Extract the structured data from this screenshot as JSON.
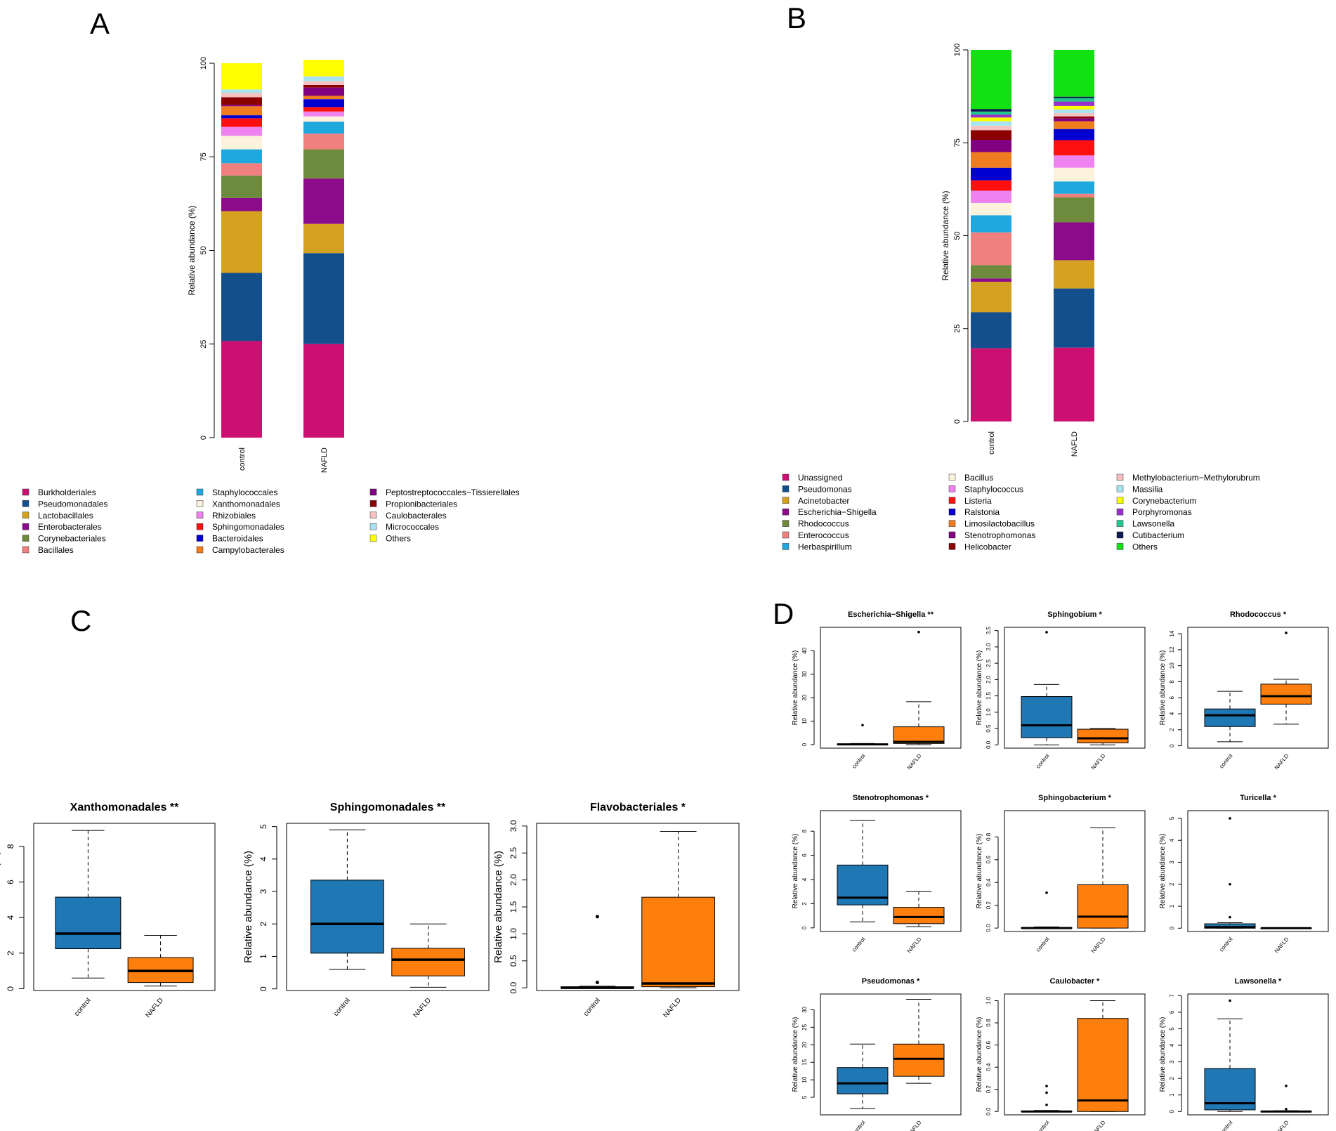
{
  "panel_labels": [
    "A",
    "B",
    "C",
    "D"
  ],
  "chart_data": [
    {
      "id": "A",
      "type": "bar",
      "stacked": true,
      "ylabel": "Relative abundance (%)",
      "ylim": [
        0,
        100
      ],
      "yticks": [
        "0",
        "25",
        "50",
        "75",
        "100"
      ],
      "categories": [
        "control",
        "NAFLD"
      ],
      "series": [
        {
          "name": "Burkholderiales",
          "color": "#cc1071",
          "values": [
            25.8,
            25.0
          ]
        },
        {
          "name": "Pseudomonadales",
          "color": "#134f8c",
          "values": [
            18.2,
            24.3
          ]
        },
        {
          "name": "Lactobacillales",
          "color": "#d4a120",
          "values": [
            16.5,
            7.8
          ]
        },
        {
          "name": "Enterobacterales",
          "color": "#8b0b8b",
          "values": [
            3.5,
            12.1
          ]
        },
        {
          "name": "Corynebacteriales",
          "color": "#6e8b3d",
          "values": [
            6.0,
            7.8
          ]
        },
        {
          "name": "Bacillales",
          "color": "#f08080",
          "values": [
            3.3,
            4.2
          ]
        },
        {
          "name": "Staphylococcales",
          "color": "#1fa7df",
          "values": [
            3.7,
            3.2
          ]
        },
        {
          "name": "Xanthomonadales",
          "color": "#fdf3dc",
          "values": [
            3.6,
            1.4
          ]
        },
        {
          "name": "Rhizobiales",
          "color": "#ee82ee",
          "values": [
            2.4,
            1.3
          ]
        },
        {
          "name": "Sphingomonadales",
          "color": "#ff1010",
          "values": [
            2.3,
            1.2
          ]
        },
        {
          "name": "Bacteroidales",
          "color": "#0000d0",
          "values": [
            0.8,
            2.1
          ]
        },
        {
          "name": "Campylobacterales",
          "color": "#f07c20",
          "values": [
            2.4,
            0.9
          ]
        },
        {
          "name": "Peptostreptococcales−Tissierellales",
          "color": "#800080",
          "values": [
            0.4,
            2.2
          ]
        },
        {
          "name": "Propionibacteriales",
          "color": "#8b0000",
          "values": [
            2.0,
            0.7
          ]
        },
        {
          "name": "Caulobacterales",
          "color": "#f4c2c2",
          "values": [
            1.2,
            1.0
          ]
        },
        {
          "name": "Micrococcales",
          "color": "#a8e4ef",
          "values": [
            0.9,
            1.3
          ]
        },
        {
          "name": "Others",
          "color": "#ffff00",
          "values": [
            7.0,
            4.4
          ]
        }
      ]
    },
    {
      "id": "B",
      "type": "bar",
      "stacked": true,
      "ylabel": "Relative abundance (%)",
      "ylim": [
        0,
        100
      ],
      "yticks": [
        "0",
        "25",
        "50",
        "75",
        "100"
      ],
      "categories": [
        "control",
        "NAFLD"
      ],
      "series": [
        {
          "name": "Unassigned",
          "color": "#cc1071",
          "values": [
            19.7,
            19.9
          ]
        },
        {
          "name": "Pseudomonas",
          "color": "#134f8c",
          "values": [
            9.7,
            15.9
          ]
        },
        {
          "name": "Acinetobacter",
          "color": "#d4a120",
          "values": [
            8.2,
            7.6
          ]
        },
        {
          "name": "Escherichia−Shigella",
          "color": "#8b0b8b",
          "values": [
            0.9,
            10.2
          ]
        },
        {
          "name": "Rhodococcus",
          "color": "#6e8b3d",
          "values": [
            3.6,
            6.7
          ]
        },
        {
          "name": "Enterococcus",
          "color": "#f08080",
          "values": [
            8.8,
            1.0
          ]
        },
        {
          "name": "Herbaspirillum",
          "color": "#1fa7df",
          "values": [
            4.6,
            3.3
          ]
        },
        {
          "name": "Bacillus",
          "color": "#fdf3dc",
          "values": [
            3.3,
            3.7
          ]
        },
        {
          "name": "Staphylococcus",
          "color": "#ee82ee",
          "values": [
            3.3,
            3.3
          ]
        },
        {
          "name": "Listeria",
          "color": "#ff1010",
          "values": [
            2.8,
            4.1
          ]
        },
        {
          "name": "Ralstonia",
          "color": "#0000d0",
          "values": [
            3.4,
            3.0
          ]
        },
        {
          "name": "Limosilactobacillus",
          "color": "#f07c20",
          "values": [
            4.2,
            2.1
          ]
        },
        {
          "name": "Stenotrophomonas",
          "color": "#800080",
          "values": [
            3.3,
            0.8
          ]
        },
        {
          "name": "Helicobacter",
          "color": "#8b0000",
          "values": [
            2.6,
            0.5
          ]
        },
        {
          "name": "Methylobacterium−Methylorubrum",
          "color": "#f4c2c2",
          "values": [
            1.2,
            0.9
          ]
        },
        {
          "name": "Massilia",
          "color": "#a8e4ef",
          "values": [
            1.2,
            1.0
          ]
        },
        {
          "name": "Corynebacterium",
          "color": "#ffff00",
          "values": [
            1.0,
            0.9
          ]
        },
        {
          "name": "Porphyromonas",
          "color": "#9932cc",
          "values": [
            0.8,
            1.2
          ]
        },
        {
          "name": "Lawsonella",
          "color": "#1ec98b",
          "values": [
            0.8,
            0.9
          ]
        },
        {
          "name": "Cutibacterium",
          "color": "#0d1a4f",
          "values": [
            0.7,
            0.4
          ]
        },
        {
          "name": "Others",
          "color": "#11e011",
          "values": [
            15.9,
            12.6
          ]
        }
      ]
    },
    {
      "id": "C",
      "type": "box",
      "ylabel": "Relative abundance (%)",
      "groups": [
        "control",
        "NAFLD"
      ],
      "colors": [
        "#1f77b4",
        "#ff7f0e"
      ],
      "plots": [
        {
          "title": "Xanthomonadales **",
          "ylim": [
            -0.1,
            9.3
          ],
          "yticks": [
            0,
            2,
            4,
            6,
            8
          ],
          "yticklabels": [
            "0",
            "2",
            "4",
            "6",
            "8"
          ],
          "boxes": [
            {
              "min": 0.6,
              "q1": 2.25,
              "median": 3.1,
              "q3": 5.15,
              "max": 8.9,
              "outliers": []
            },
            {
              "min": 0.15,
              "q1": 0.35,
              "median": 1.0,
              "q3": 1.75,
              "max": 3.0,
              "outliers": []
            }
          ]
        },
        {
          "title": "Sphingomonadales **",
          "ylim": [
            -0.05,
            5.1
          ],
          "yticks": [
            0,
            1,
            2,
            3,
            4,
            5
          ],
          "yticklabels": [
            "0",
            "1",
            "2",
            "3",
            "4",
            "5"
          ],
          "boxes": [
            {
              "min": 0.6,
              "q1": 1.1,
              "median": 2.0,
              "q3": 3.35,
              "max": 4.9,
              "outliers": []
            },
            {
              "min": 0.05,
              "q1": 0.4,
              "median": 0.9,
              "q3": 1.25,
              "max": 2.0,
              "outliers": []
            }
          ]
        },
        {
          "title": "Flavobacteriales *",
          "ylim": [
            -0.05,
            3.05
          ],
          "yticks": [
            0,
            0.5,
            1,
            1.5,
            2,
            2.5,
            3
          ],
          "yticklabels": [
            "0.0",
            "0.5",
            "1.0",
            "1.5",
            "2.0",
            "2.5",
            "3.0"
          ],
          "boxes": [
            {
              "min": 0,
              "q1": 0,
              "median": 0,
              "q3": 0.02,
              "max": 0.03,
              "outliers": [
                0.1,
                1.32
              ]
            },
            {
              "min": 0,
              "q1": 0.02,
              "median": 0.08,
              "q3": 1.68,
              "max": 2.9,
              "outliers": []
            }
          ]
        }
      ]
    },
    {
      "id": "D",
      "type": "box",
      "ylabel": "Relative abundance (%)",
      "groups": [
        "control",
        "NAFLD"
      ],
      "colors": [
        "#1f77b4",
        "#ff7f0e"
      ],
      "plots": [
        {
          "title": "Escherichia−Shigella **",
          "ylim": [
            -1.5,
            50
          ],
          "yticks": [
            0,
            10,
            20,
            30,
            40
          ],
          "yticklabels": [
            "0",
            "10",
            "20",
            "30",
            "40"
          ],
          "boxes": [
            {
              "min": 0,
              "q1": 0,
              "median": 0.1,
              "q3": 0.3,
              "max": 0.5,
              "outliers": [
                8.3
              ]
            },
            {
              "min": 0,
              "q1": 0.5,
              "median": 1.2,
              "q3": 7.6,
              "max": 18.3,
              "outliers": [
                48
              ]
            }
          ]
        },
        {
          "title": "Sphingobium *",
          "ylim": [
            -0.1,
            3.6
          ],
          "yticks": [
            0,
            0.5,
            1,
            1.5,
            2,
            2.5,
            3,
            3.5
          ],
          "yticklabels": [
            "0.0",
            "0.5",
            "1.0",
            "1.5",
            "2.0",
            "2.5",
            "3.0",
            "3.5"
          ],
          "boxes": [
            {
              "min": 0,
              "q1": 0.22,
              "median": 0.6,
              "q3": 1.48,
              "max": 1.85,
              "outliers": [
                3.45
              ]
            },
            {
              "min": 0,
              "q1": 0.06,
              "median": 0.2,
              "q3": 0.48,
              "max": 0.5,
              "outliers": []
            }
          ]
        },
        {
          "title": "Rhodococcus *",
          "ylim": [
            -0.3,
            14.8
          ],
          "yticks": [
            0,
            2,
            4,
            6,
            8,
            10,
            12,
            14
          ],
          "yticklabels": [
            "0",
            "2",
            "4",
            "6",
            "8",
            "10",
            "12",
            "14"
          ],
          "boxes": [
            {
              "min": 0.5,
              "q1": 2.4,
              "median": 3.8,
              "q3": 4.6,
              "max": 6.8,
              "outliers": []
            },
            {
              "min": 2.7,
              "q1": 5.2,
              "median": 6.2,
              "q3": 7.7,
              "max": 8.3,
              "outliers": [
                14.1
              ]
            }
          ]
        },
        {
          "title": "Stenotrophomonas *",
          "ylim": [
            -0.3,
            9.7
          ],
          "yticks": [
            0,
            2,
            4,
            6,
            8
          ],
          "yticklabels": [
            "0",
            "2",
            "4",
            "6",
            "8"
          ],
          "boxes": [
            {
              "min": 0.5,
              "q1": 1.9,
              "median": 2.5,
              "q3": 5.2,
              "max": 8.9,
              "outliers": []
            },
            {
              "min": 0.1,
              "q1": 0.35,
              "median": 0.9,
              "q3": 1.7,
              "max": 3.0,
              "outliers": []
            }
          ]
        },
        {
          "title": "Sphingobacterium *",
          "ylim": [
            -0.03,
            1.03
          ],
          "yticks": [
            0,
            0.2,
            0.4,
            0.6,
            0.8
          ],
          "yticklabels": [
            "0.0",
            "0.2",
            "0.4",
            "0.6",
            "0.8"
          ],
          "boxes": [
            {
              "min": 0,
              "q1": 0,
              "median": 0,
              "q3": 0.005,
              "max": 0.01,
              "outliers": [
                0.31
              ]
            },
            {
              "min": 0,
              "q1": 0,
              "median": 0.1,
              "q3": 0.38,
              "max": 0.88,
              "outliers": []
            }
          ]
        },
        {
          "title": "Turicella *",
          "ylim": [
            -0.15,
            5.35
          ],
          "yticks": [
            0,
            1,
            2,
            3,
            4,
            5
          ],
          "yticklabels": [
            "0",
            "1",
            "2",
            "3",
            "4",
            "5"
          ],
          "boxes": [
            {
              "min": 0,
              "q1": 0,
              "median": 0.05,
              "q3": 0.2,
              "max": 0.25,
              "outliers": [
                0.5,
                2.0,
                5.0
              ]
            },
            {
              "min": 0,
              "q1": 0,
              "median": 0,
              "q3": 0.01,
              "max": 0.02,
              "outliers": []
            }
          ]
        },
        {
          "title": "Pseudomonas *",
          "ylim": [
            0,
            34.5
          ],
          "yticks": [
            5,
            10,
            15,
            20,
            25,
            30
          ],
          "yticklabels": [
            "5",
            "10",
            "15",
            "20",
            "25",
            "30"
          ],
          "boxes": [
            {
              "min": 1.8,
              "q1": 6.0,
              "median": 9.0,
              "q3": 13.5,
              "max": 20.2,
              "outliers": []
            },
            {
              "min": 9.0,
              "q1": 11.0,
              "median": 16.0,
              "q3": 20.2,
              "max": 33.0,
              "outliers": []
            }
          ]
        },
        {
          "title": "Caulobacter *",
          "ylim": [
            -0.03,
            1.06
          ],
          "yticks": [
            0,
            0.2,
            0.4,
            0.6,
            0.8,
            1.0
          ],
          "yticklabels": [
            "0.0",
            "0.2",
            "0.4",
            "0.6",
            "0.8",
            "1.0"
          ],
          "boxes": [
            {
              "min": 0,
              "q1": 0,
              "median": 0,
              "q3": 0.005,
              "max": 0.01,
              "outliers": [
                0.06,
                0.17,
                0.23
              ]
            },
            {
              "min": 0,
              "q1": 0,
              "median": 0.1,
              "q3": 0.84,
              "max": 1.0,
              "outliers": []
            }
          ]
        },
        {
          "title": "Lawsonella *",
          "ylim": [
            -0.2,
            7.1
          ],
          "yticks": [
            0,
            1,
            2,
            3,
            4,
            5,
            6,
            7
          ],
          "yticklabels": [
            "0",
            "1",
            "2",
            "3",
            "4",
            "5",
            "6",
            "7"
          ],
          "boxes": [
            {
              "min": 0,
              "q1": 0.1,
              "median": 0.5,
              "q3": 2.6,
              "max": 5.6,
              "outliers": [
                6.7
              ]
            },
            {
              "min": 0,
              "q1": 0,
              "median": 0,
              "q3": 0.02,
              "max": 0.05,
              "outliers": [
                0.15,
                1.55
              ]
            }
          ]
        }
      ]
    }
  ]
}
